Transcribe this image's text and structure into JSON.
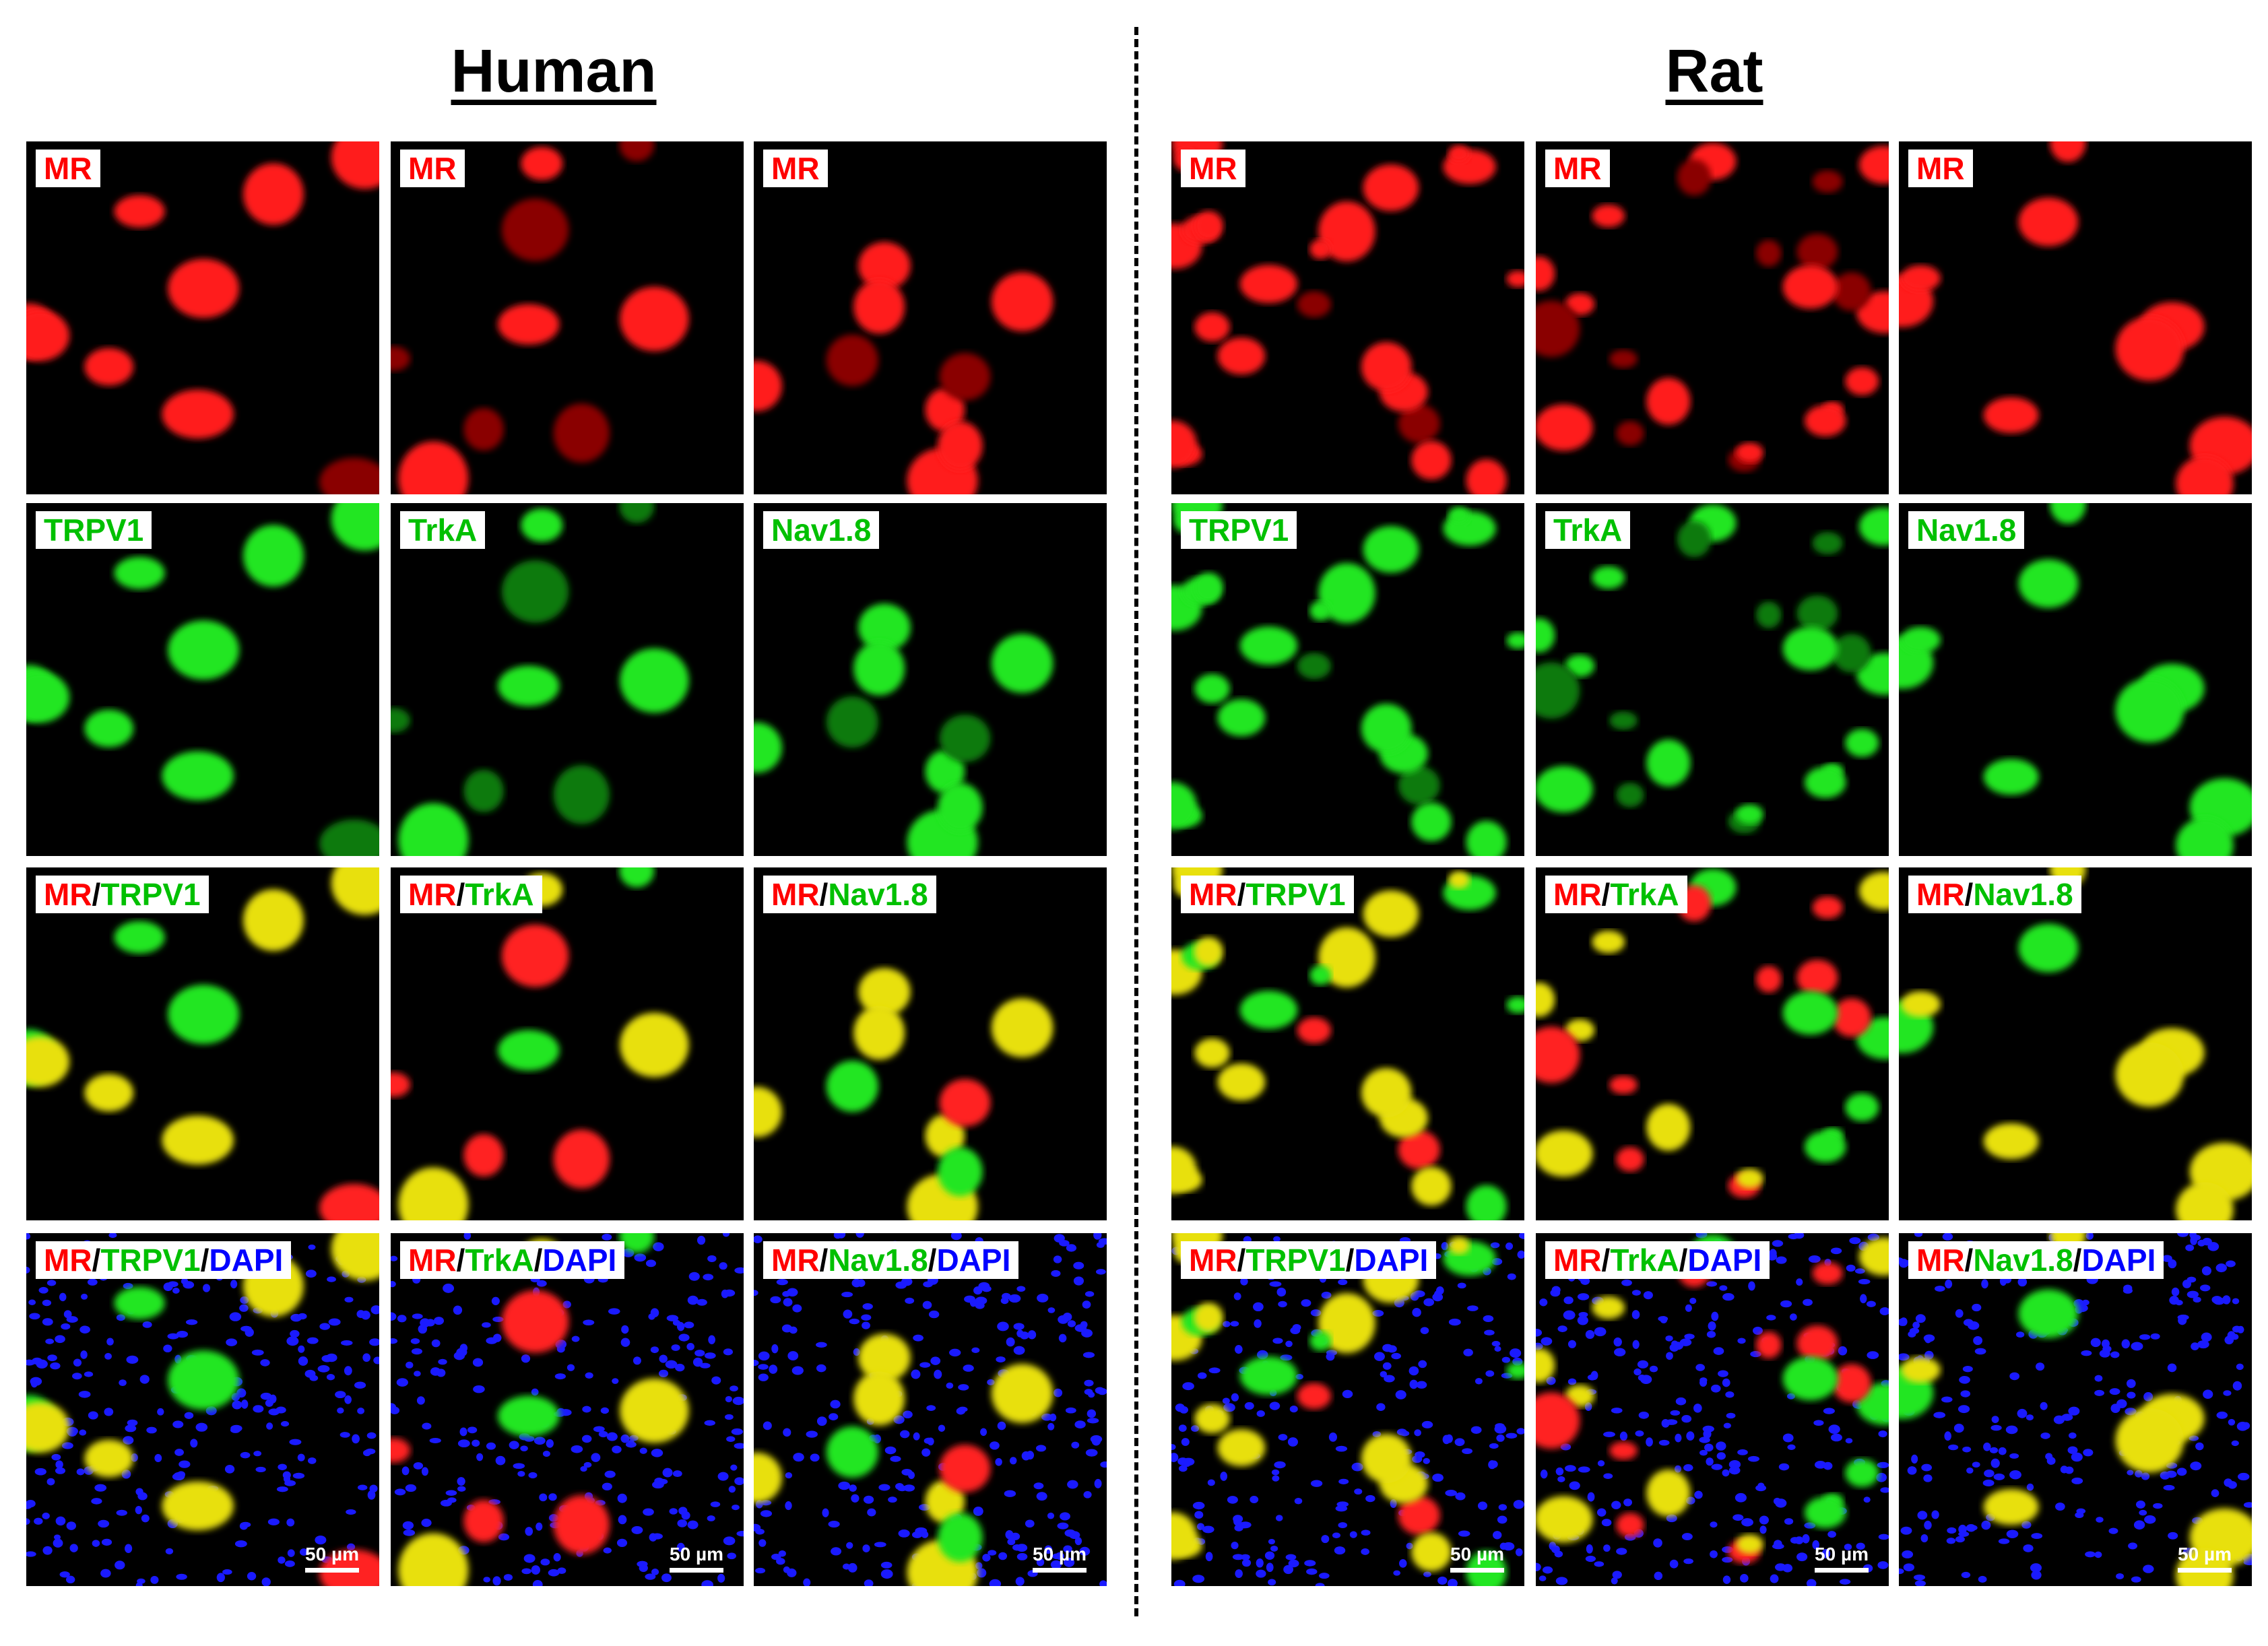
{
  "sections": [
    {
      "title": "Human",
      "panels": [
        {
          "label": [
            {
              "text": "MR",
              "color": "#ff0000"
            }
          ]
        },
        {
          "label": [
            {
              "text": "MR",
              "color": "#ff0000"
            }
          ]
        },
        {
          "label": [
            {
              "text": "MR",
              "color": "#ff0000"
            }
          ]
        },
        {
          "label": [
            {
              "text": "TRPV1",
              "color": "#00c000"
            }
          ]
        },
        {
          "label": [
            {
              "text": "TrkA",
              "color": "#00c000"
            }
          ]
        },
        {
          "label": [
            {
              "text": "Nav1.8",
              "color": "#00c000"
            }
          ]
        },
        {
          "label": [
            {
              "text": "MR",
              "color": "#ff0000"
            },
            {
              "text": "/",
              "color": "#000000"
            },
            {
              "text": "TRPV1",
              "color": "#00c000"
            }
          ]
        },
        {
          "label": [
            {
              "text": "MR",
              "color": "#ff0000"
            },
            {
              "text": "/",
              "color": "#000000"
            },
            {
              "text": "TrkA",
              "color": "#00c000"
            }
          ]
        },
        {
          "label": [
            {
              "text": "MR",
              "color": "#ff0000"
            },
            {
              "text": "/",
              "color": "#000000"
            },
            {
              "text": "Nav1.8",
              "color": "#00c000"
            }
          ]
        },
        {
          "label": [
            {
              "text": "MR",
              "color": "#ff0000"
            },
            {
              "text": "/",
              "color": "#000000"
            },
            {
              "text": "TRPV1",
              "color": "#00c000"
            },
            {
              "text": "/",
              "color": "#000000"
            },
            {
              "text": "DAPI",
              "color": "#0000ff"
            }
          ],
          "scale_bar": "50 µm"
        },
        {
          "label": [
            {
              "text": "MR",
              "color": "#ff0000"
            },
            {
              "text": "/",
              "color": "#000000"
            },
            {
              "text": "TrkA",
              "color": "#00c000"
            },
            {
              "text": "/",
              "color": "#000000"
            },
            {
              "text": "DAPI",
              "color": "#0000ff"
            }
          ],
          "scale_bar": "50 µm"
        },
        {
          "label": [
            {
              "text": "MR",
              "color": "#ff0000"
            },
            {
              "text": "/",
              "color": "#000000"
            },
            {
              "text": "Nav1.8",
              "color": "#00c000"
            },
            {
              "text": "/",
              "color": "#000000"
            },
            {
              "text": "DAPI",
              "color": "#0000ff"
            }
          ],
          "scale_bar": "50 µm"
        }
      ]
    },
    {
      "title": "Rat",
      "panels": [
        {
          "label": [
            {
              "text": "MR",
              "color": "#ff0000"
            }
          ]
        },
        {
          "label": [
            {
              "text": "MR",
              "color": "#ff0000"
            }
          ]
        },
        {
          "label": [
            {
              "text": "MR",
              "color": "#ff0000"
            }
          ]
        },
        {
          "label": [
            {
              "text": "TRPV1",
              "color": "#00c000"
            }
          ]
        },
        {
          "label": [
            {
              "text": "TrkA",
              "color": "#00c000"
            }
          ]
        },
        {
          "label": [
            {
              "text": "Nav1.8",
              "color": "#00c000"
            }
          ]
        },
        {
          "label": [
            {
              "text": "MR",
              "color": "#ff0000"
            },
            {
              "text": "/",
              "color": "#000000"
            },
            {
              "text": "TRPV1",
              "color": "#00c000"
            }
          ]
        },
        {
          "label": [
            {
              "text": "MR",
              "color": "#ff0000"
            },
            {
              "text": "/",
              "color": "#000000"
            },
            {
              "text": "TrkA",
              "color": "#00c000"
            }
          ]
        },
        {
          "label": [
            {
              "text": "MR",
              "color": "#ff0000"
            },
            {
              "text": "/",
              "color": "#000000"
            },
            {
              "text": "Nav1.8",
              "color": "#00c000"
            }
          ]
        },
        {
          "label": [
            {
              "text": "MR",
              "color": "#ff0000"
            },
            {
              "text": "/",
              "color": "#000000"
            },
            {
              "text": "TRPV1",
              "color": "#00c000"
            },
            {
              "text": "/",
              "color": "#000000"
            },
            {
              "text": "DAPI",
              "color": "#0000ff"
            }
          ],
          "scale_bar": "50 µm"
        },
        {
          "label": [
            {
              "text": "MR",
              "color": "#ff0000"
            },
            {
              "text": "/",
              "color": "#000000"
            },
            {
              "text": "TrkA",
              "color": "#00c000"
            },
            {
              "text": "/",
              "color": "#000000"
            },
            {
              "text": "DAPI",
              "color": "#0000ff"
            }
          ],
          "scale_bar": "50 µm"
        },
        {
          "label": [
            {
              "text": "MR",
              "color": "#ff0000"
            },
            {
              "text": "/",
              "color": "#000000"
            },
            {
              "text": "Nav1.8",
              "color": "#00c000"
            },
            {
              "text": "/",
              "color": "#000000"
            },
            {
              "text": "DAPI",
              "color": "#0000ff"
            }
          ],
          "scale_bar": "50 µm"
        }
      ]
    }
  ]
}
